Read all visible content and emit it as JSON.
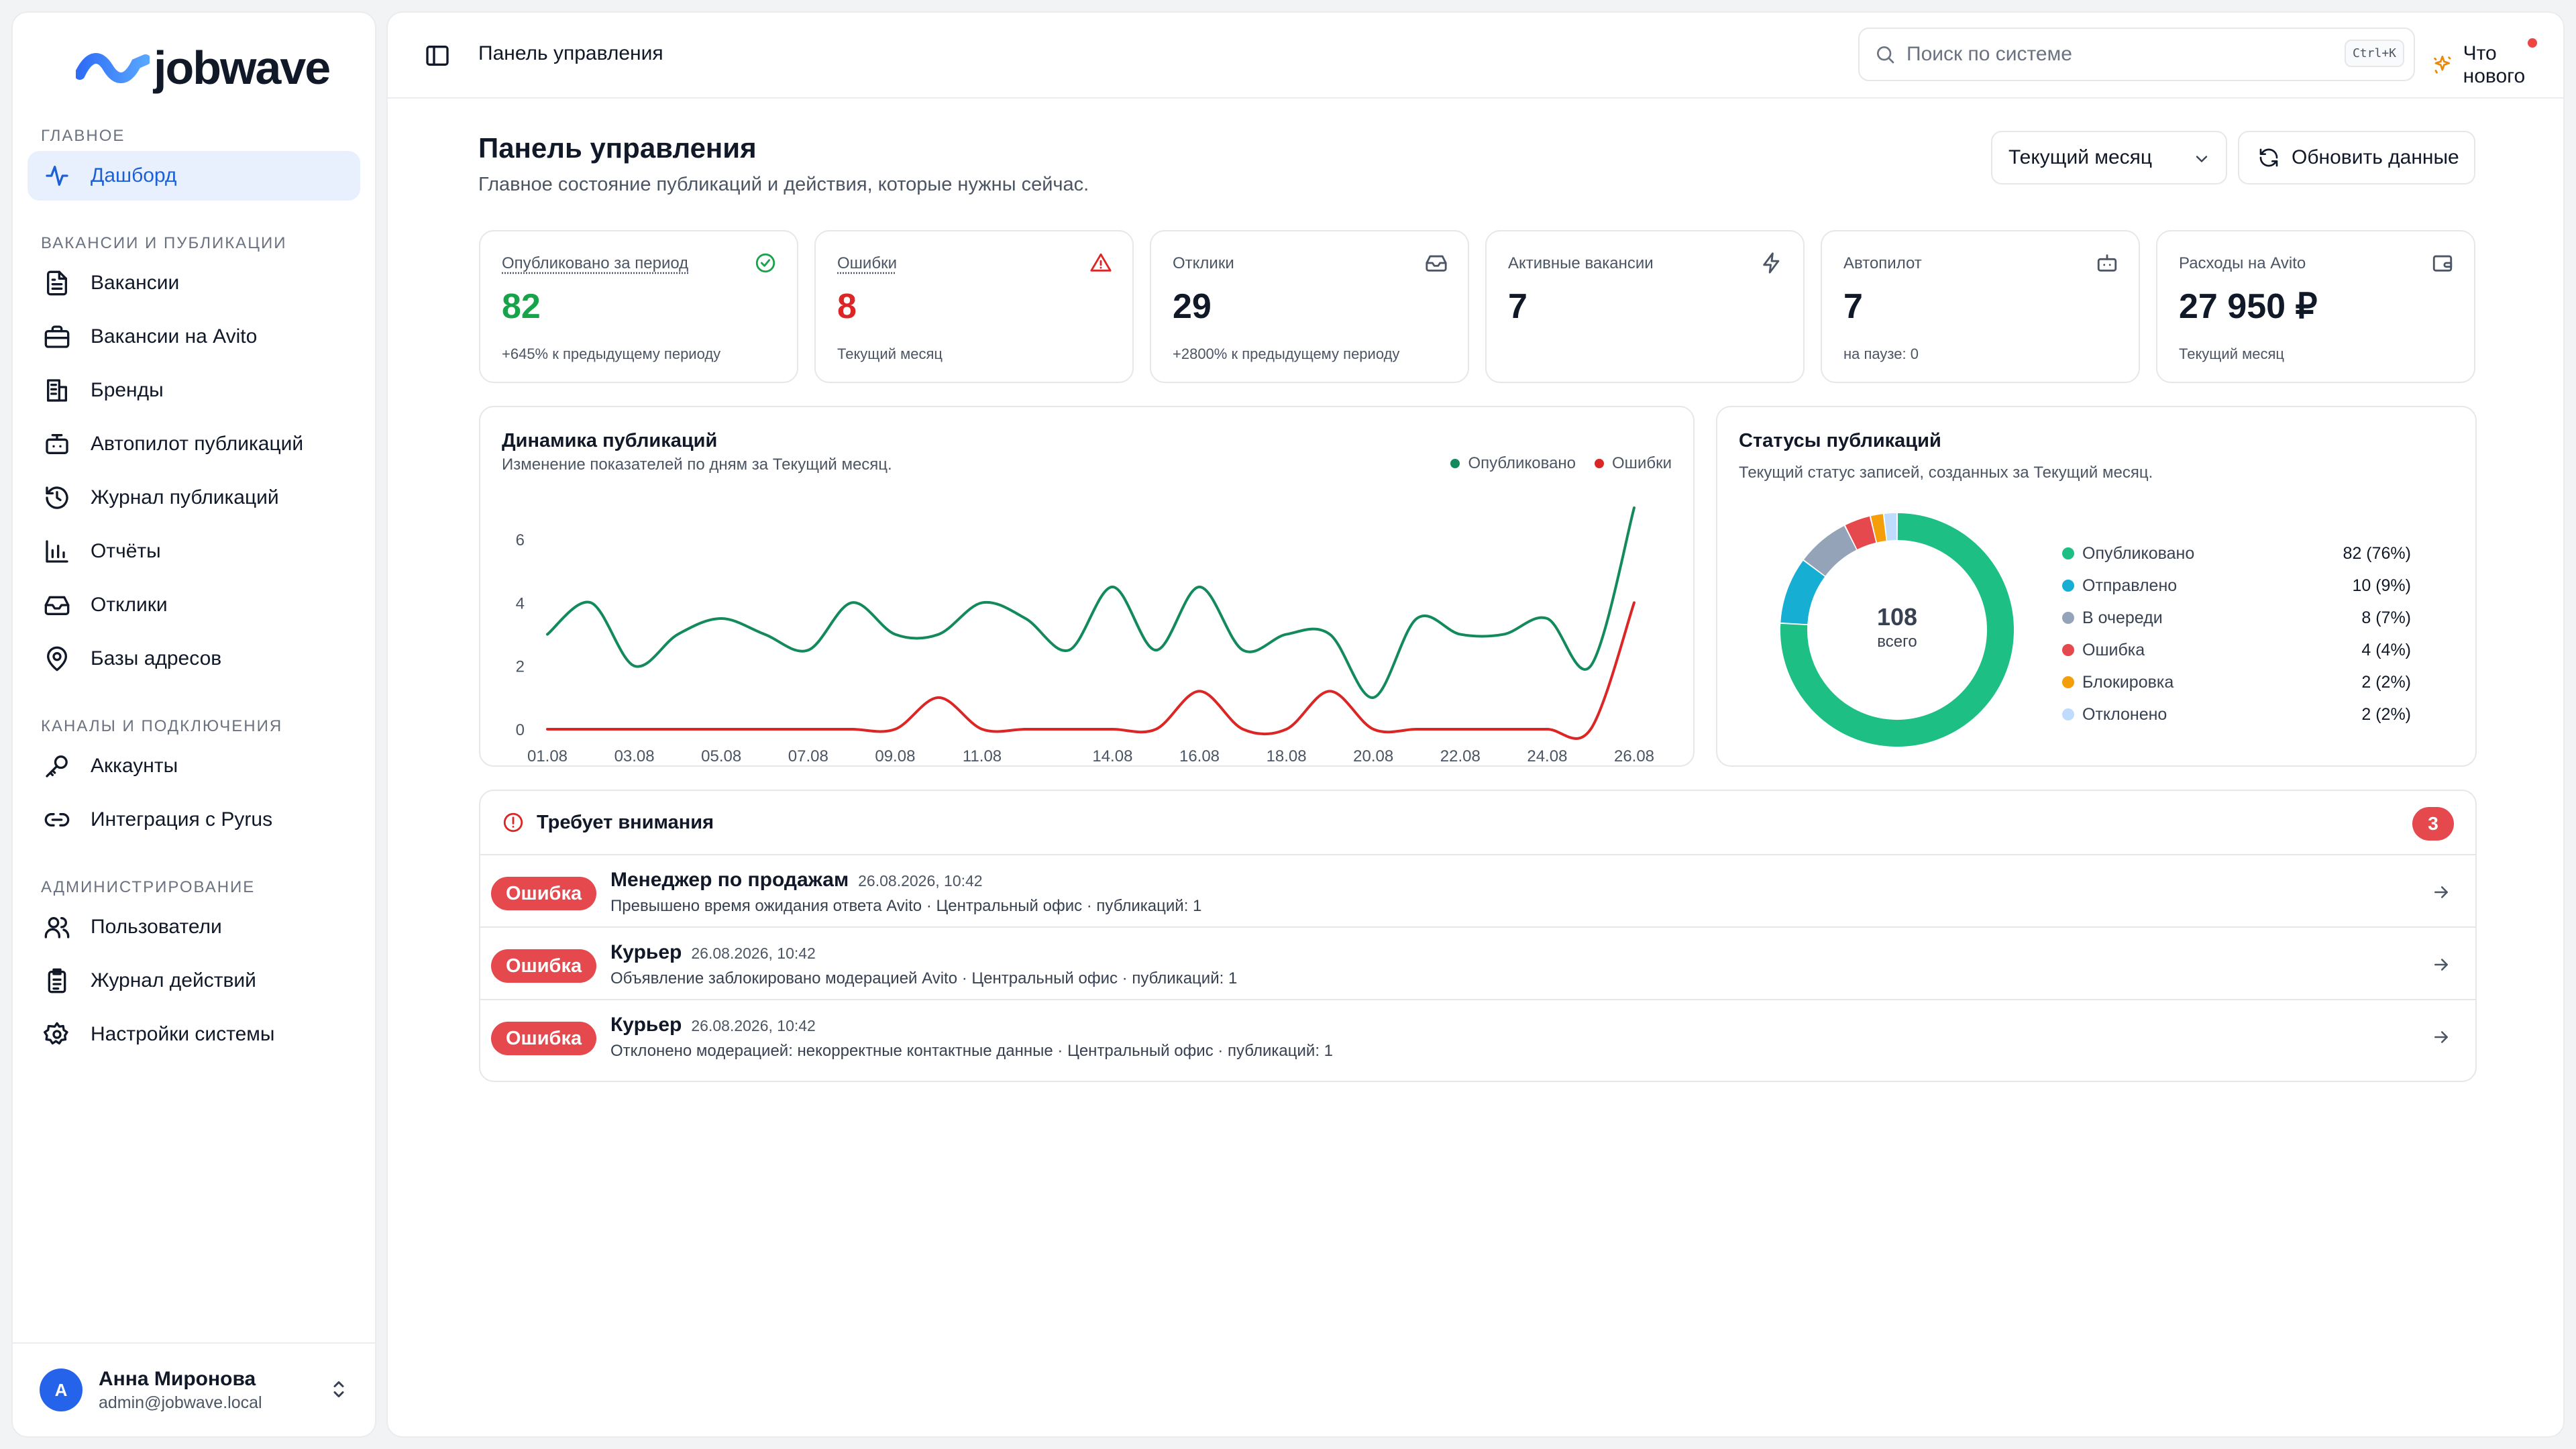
{
  "app": {
    "brand": "jobwave",
    "colors": {
      "accent": "#1d5fd6",
      "success": "#16a34a",
      "danger": "#dc2626",
      "chart_green": "#138a5c",
      "chart_red": "#dc2626"
    }
  },
  "sidebar": {
    "sections": [
      {
        "title": "ГЛАВНОЕ",
        "items": [
          {
            "label": "Дашборд",
            "icon": "activity-icon",
            "active": true
          }
        ]
      },
      {
        "title": "ВАКАНСИИ И ПУБЛИКАЦИИ",
        "items": [
          {
            "label": "Вакансии",
            "icon": "file-text-icon"
          },
          {
            "label": "Вакансии на Avito",
            "icon": "briefcase-icon"
          },
          {
            "label": "Бренды",
            "icon": "building-icon"
          },
          {
            "label": "Автопилот публикаций",
            "icon": "bot-icon"
          },
          {
            "label": "Журнал публикаций",
            "icon": "history-icon"
          },
          {
            "label": "Отчёты",
            "icon": "bar-chart-icon"
          },
          {
            "label": "Отклики",
            "icon": "inbox-icon"
          },
          {
            "label": "Базы адресов",
            "icon": "map-pin-icon"
          }
        ]
      },
      {
        "title": "КАНАЛЫ И ПОДКЛЮЧЕНИЯ",
        "items": [
          {
            "label": "Аккаунты",
            "icon": "key-icon"
          },
          {
            "label": "Интеграция с Pyrus",
            "icon": "link-icon"
          }
        ]
      },
      {
        "title": "АДМИНИСТРИРОВАНИЕ",
        "items": [
          {
            "label": "Пользователи",
            "icon": "users-icon"
          },
          {
            "label": "Журнал действий",
            "icon": "clipboard-icon"
          },
          {
            "label": "Настройки системы",
            "icon": "gear-icon"
          }
        ]
      }
    ],
    "user": {
      "initial": "А",
      "name": "Анна Миронова",
      "email": "admin@jobwave.local"
    }
  },
  "topbar": {
    "title": "Панель управления",
    "search_placeholder": "Поиск по системе",
    "search_shortcut": "Ctrl+K",
    "whats_new": "Что нового"
  },
  "page": {
    "title": "Панель управления",
    "subtitle": "Главное состояние публикаций и действия, которые нужны сейчас.",
    "period": "Текущий месяц",
    "refresh_label": "Обновить данные"
  },
  "stats": [
    {
      "label": "Опубликовано за период",
      "value": "82",
      "note": "+645% к предыдущему периоду",
      "icon": "check-circle-icon"
    },
    {
      "label": "Ошибки",
      "value": "8",
      "note": "Текущий месяц",
      "icon": "alert-triangle-icon"
    },
    {
      "label": "Отклики",
      "value": "29",
      "note": "+2800% к предыдущему периоду",
      "icon": "inbox-icon"
    },
    {
      "label": "Активные вакансии",
      "value": "7",
      "note": "",
      "icon": "zap-icon"
    },
    {
      "label": "Автопилот",
      "value": "7",
      "note": "на паузе: 0",
      "icon": "bot-icon"
    },
    {
      "label": "Расходы на Avito",
      "value": "27 950 ₽",
      "note": "Текущий месяц",
      "icon": "wallet-icon"
    }
  ],
  "dynamics": {
    "title": "Динамика публикаций",
    "subtitle": "Изменение показателей по дням за Текущий месяц."
  },
  "statuses": {
    "title": "Статусы публикаций",
    "subtitle": "Текущий статус записей, созданных за Текущий месяц.",
    "total": "108",
    "total_label": "всего"
  },
  "chart_data": [
    {
      "type": "line",
      "title": "Динамика публикаций",
      "x": [
        "01.08",
        "02.08",
        "03.08",
        "04.08",
        "05.08",
        "06.08",
        "07.08",
        "08.08",
        "09.08",
        "10.08",
        "11.08",
        "12.08",
        "13.08",
        "14.08",
        "15.08",
        "16.08",
        "17.08",
        "18.08",
        "19.08",
        "20.08",
        "21.08",
        "22.08",
        "23.08",
        "24.08",
        "25.08",
        "26.08"
      ],
      "x_tick_labels": [
        "01.08",
        "03.08",
        "05.08",
        "07.08",
        "09.08",
        "11.08",
        "14.08",
        "16.08",
        "18.08",
        "20.08",
        "22.08",
        "24.08",
        "26.08"
      ],
      "series": [
        {
          "name": "Опубликовано",
          "color": "#138a5c",
          "values": [
            3,
            4,
            2,
            3,
            3.5,
            3,
            2.5,
            4,
            3,
            3,
            4,
            3.5,
            2.5,
            4.5,
            2.5,
            4.5,
            2.5,
            3,
            3,
            1,
            3.5,
            3,
            3,
            3.5,
            2,
            7
          ]
        },
        {
          "name": "Ошибки",
          "color": "#dc2626",
          "values": [
            0,
            0,
            0,
            0,
            0,
            0,
            0,
            0,
            0,
            1,
            0,
            0,
            0,
            0,
            0,
            1.2,
            0,
            0,
            1.2,
            0,
            0,
            0,
            0,
            0,
            0,
            4
          ]
        }
      ],
      "y_ticks": [
        0,
        2,
        4,
        6
      ],
      "ylim": [
        0,
        7
      ],
      "grid": false,
      "legend": "top-right"
    },
    {
      "type": "pie",
      "title": "Статусы публикаций",
      "series": [
        {
          "name": "Опубликовано",
          "value": 82,
          "label": "82 (76%)",
          "color": "#1dbf84"
        },
        {
          "name": "Отправлено",
          "value": 10,
          "label": "10 (9%)",
          "color": "#17aed3"
        },
        {
          "name": "В очереди",
          "value": 8,
          "label": "8 (7%)",
          "color": "#94a3b8"
        },
        {
          "name": "Ошибка",
          "value": 4,
          "label": "4 (4%)",
          "color": "#e5484d"
        },
        {
          "name": "Блокировка",
          "value": 2,
          "label": "2 (2%)",
          "color": "#f59e0b"
        },
        {
          "name": "Отклонено",
          "value": 2,
          "label": "2 (2%)",
          "color": "#bfdbfe"
        }
      ],
      "legend": "right"
    }
  ],
  "attention": {
    "title": "Требует внимания",
    "count": "3",
    "items": [
      {
        "badge": "Ошибка",
        "title": "Менеджер по продажам",
        "time": "26.08.2026, 10:42",
        "desc": "Превышено время ожидания ответа Avito · Центральный офис · публикаций: 1"
      },
      {
        "badge": "Ошибка",
        "title": "Курьер",
        "time": "26.08.2026, 10:42",
        "desc": "Объявление заблокировано модерацией Avito · Центральный офис · публикаций: 1"
      },
      {
        "badge": "Ошибка",
        "title": "Курьер",
        "time": "26.08.2026, 10:42",
        "desc": "Отклонено модерацией: некорректные контактные данные · Центральный офис · публикаций: 1"
      }
    ]
  }
}
